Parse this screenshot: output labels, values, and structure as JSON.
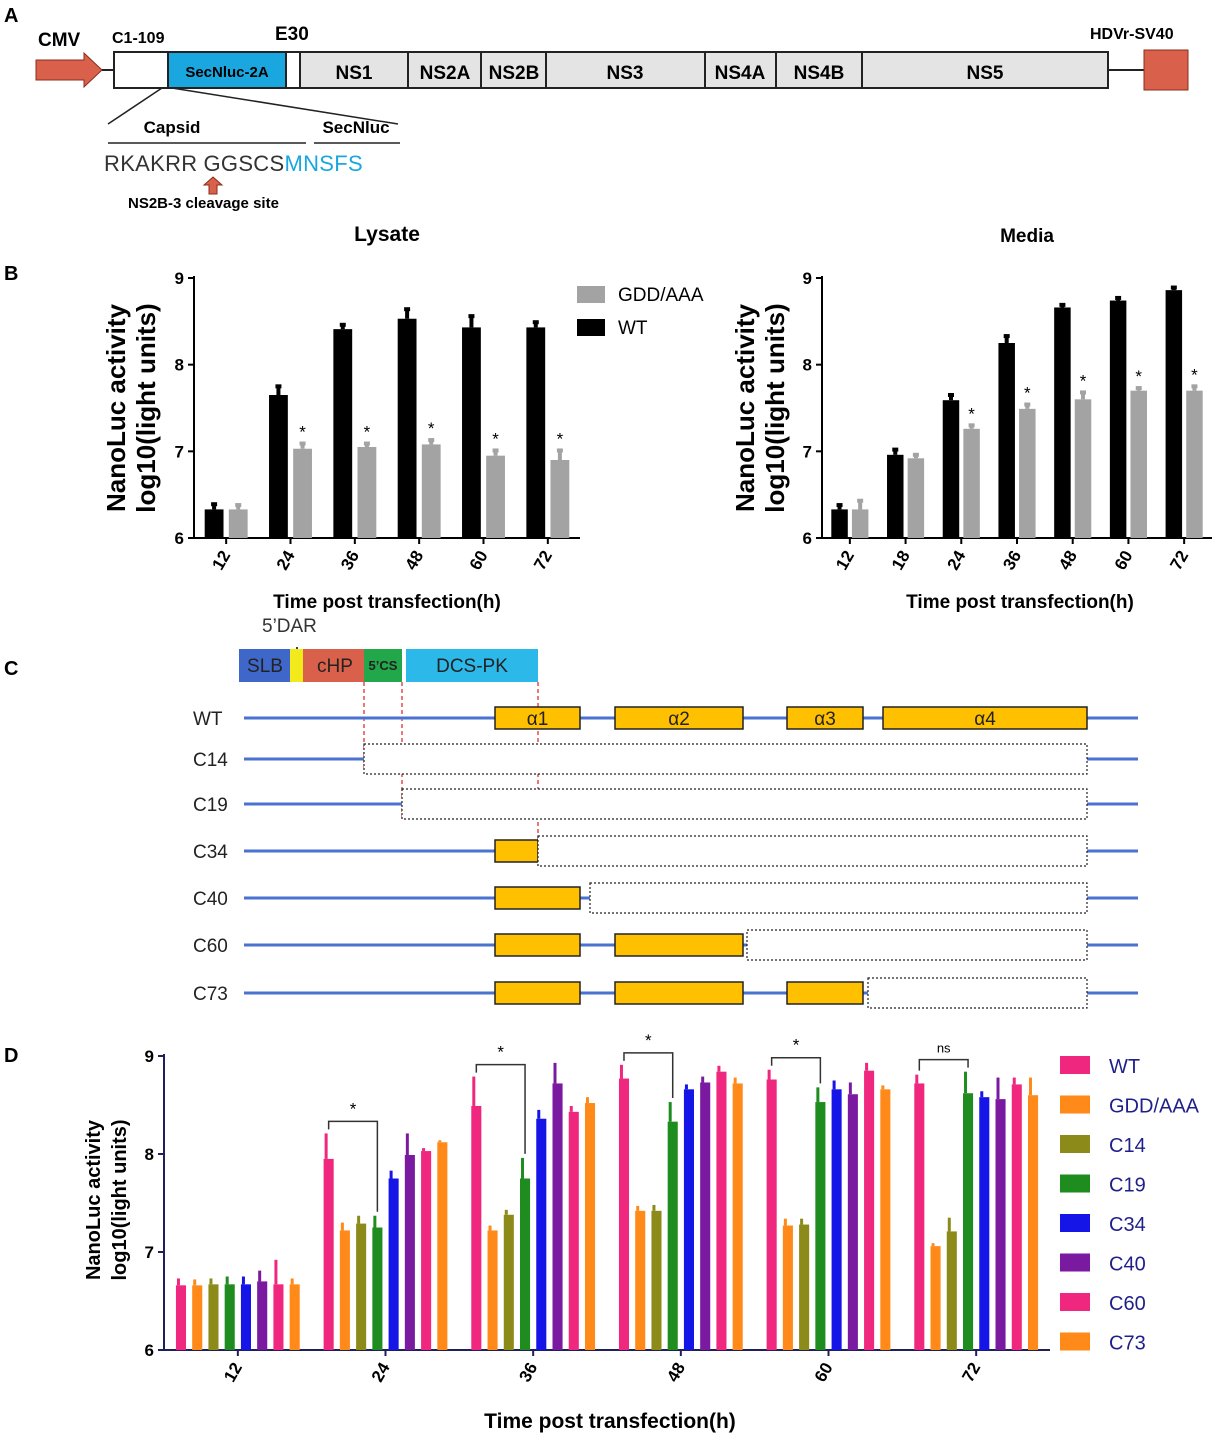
{
  "panel_a": {
    "label": "A",
    "promoter": "CMV",
    "c_label": "C1-109",
    "e_label": "E30",
    "tail_label": "HDVr-SV40",
    "genes": [
      "SecNluc-2A",
      "NS1",
      "NS2A",
      "NS2B",
      "NS3",
      "NS4A",
      "NS4B",
      "NS5"
    ],
    "capsid_label": "Capsid",
    "secnluc_label": "SecNluc",
    "seq_capsid": "RKAKRR",
    "seq_linker": "GGSCS",
    "seq_secnluc": "MNSFS",
    "cleavage_label": "NS2B-3 cleavage site",
    "colors": {
      "promoter": "#d9604a",
      "secnluc": "#1aa7e0",
      "gene": "#e4e4e4"
    }
  },
  "panel_b": {
    "label": "B"
  },
  "panel_c": {
    "label": "C",
    "top_label": "5’DAR",
    "elements": [
      "SLB",
      "cHP",
      "5’CS",
      "DCS-PK"
    ],
    "element_colors": [
      "#3f67c9",
      "#f2ea1a",
      "#d9604a",
      "#22a84a",
      "#2cb8e8"
    ],
    "rows": [
      "WT",
      "C14",
      "C19",
      "C34",
      "C40",
      "C60",
      "C73"
    ],
    "helices": [
      "α1",
      "α2",
      "α3",
      "α4"
    ],
    "colors": {
      "line": "#4a72d0",
      "helix": "#ffc000",
      "guide": "#e02020"
    }
  },
  "panel_d": {
    "label": "D"
  },
  "chart_data": [
    {
      "type": "bar",
      "panel": "B",
      "title": "Lysate",
      "categories": [
        "12",
        "24",
        "36",
        "48",
        "60",
        "72"
      ],
      "series": [
        {
          "name": "WT",
          "color": "#000000",
          "values": [
            6.33,
            7.65,
            8.41,
            8.53,
            8.43,
            8.43
          ],
          "errors": [
            0.06,
            0.1,
            0.05,
            0.11,
            0.13,
            0.06
          ]
        },
        {
          "name": "GDD/AAA",
          "color": "#a3a3a3",
          "values": [
            6.33,
            7.03,
            7.05,
            7.08,
            6.95,
            6.9
          ],
          "errors": [
            0.05,
            0.06,
            0.04,
            0.05,
            0.06,
            0.11
          ]
        }
      ],
      "significance": [
        "",
        "*",
        "*",
        "*",
        "*",
        "*"
      ],
      "legend": [
        "GDD/AAA",
        "WT"
      ],
      "xlabel": "Time post transfection(h)",
      "ylabel": [
        "NanoLuc activity",
        "log10(light units)"
      ],
      "yticks": [
        "6",
        "7",
        "8",
        "9"
      ],
      "ylim": [
        6,
        9
      ]
    },
    {
      "type": "bar",
      "panel": "B",
      "title": "Media",
      "categories": [
        "12",
        "18",
        "24",
        "36",
        "48",
        "60",
        "72"
      ],
      "series": [
        {
          "name": "WT",
          "color": "#000000",
          "values": [
            6.33,
            6.96,
            7.59,
            8.25,
            8.66,
            8.74,
            8.86
          ],
          "errors": [
            0.05,
            0.06,
            0.06,
            0.08,
            0.03,
            0.03,
            0.03
          ]
        },
        {
          "name": "GDD/AAA",
          "color": "#a3a3a3",
          "values": [
            6.33,
            6.92,
            7.26,
            7.49,
            7.6,
            7.7,
            7.7
          ],
          "errors": [
            0.1,
            0.04,
            0.04,
            0.05,
            0.08,
            0.03,
            0.05
          ]
        }
      ],
      "significance": [
        "",
        "",
        "*",
        "*",
        "*",
        "*",
        "*"
      ],
      "xlabel": "Time post transfection(h)",
      "ylabel": [
        "NanoLuc activity",
        "log10(light units)"
      ],
      "yticks": [
        "6",
        "7",
        "8",
        "9"
      ],
      "ylim": [
        6,
        9
      ]
    },
    {
      "type": "bar",
      "panel": "D",
      "title": "",
      "categories": [
        "12",
        "24",
        "36",
        "48",
        "60",
        "72"
      ],
      "series": [
        {
          "name": "WT",
          "color": "#f0277f",
          "values": [
            6.66,
            7.95,
            8.49,
            8.77,
            8.76,
            8.72
          ],
          "errors": [
            0.07,
            0.26,
            0.3,
            0.14,
            0.1,
            0.09
          ]
        },
        {
          "name": "GDD/AAA",
          "color": "#ff8a1a",
          "values": [
            6.66,
            7.22,
            7.22,
            7.42,
            7.27,
            7.06
          ],
          "errors": [
            0.06,
            0.08,
            0.05,
            0.05,
            0.07,
            0.03
          ]
        },
        {
          "name": "C14",
          "color": "#8c8b1a",
          "values": [
            6.67,
            7.29,
            7.38,
            7.42,
            7.28,
            7.21
          ],
          "errors": [
            0.06,
            0.08,
            0.05,
            0.06,
            0.06,
            0.14
          ]
        },
        {
          "name": "C19",
          "color": "#1f8c1f",
          "values": [
            6.67,
            7.25,
            7.75,
            8.33,
            8.53,
            8.62
          ],
          "errors": [
            0.08,
            0.12,
            0.21,
            0.2,
            0.15,
            0.22
          ]
        },
        {
          "name": "C34",
          "color": "#1515e8",
          "values": [
            6.67,
            7.75,
            8.36,
            8.66,
            8.66,
            8.58
          ],
          "errors": [
            0.08,
            0.08,
            0.09,
            0.05,
            0.09,
            0.06
          ]
        },
        {
          "name": "C40",
          "color": "#7a1aa0",
          "values": [
            6.7,
            7.99,
            8.72,
            8.73,
            8.61,
            8.56
          ],
          "errors": [
            0.11,
            0.22,
            0.21,
            0.06,
            0.12,
            0.22
          ]
        },
        {
          "name": "C60",
          "color": "#f0277f",
          "values": [
            6.67,
            8.03,
            8.43,
            8.84,
            8.85,
            8.71
          ],
          "errors": [
            0.25,
            0.03,
            0.06,
            0.06,
            0.08,
            0.07
          ]
        },
        {
          "name": "C73",
          "color": "#ff8a1a",
          "values": [
            6.67,
            8.12,
            8.52,
            8.72,
            8.66,
            8.6
          ],
          "errors": [
            0.06,
            0.02,
            0.06,
            0.06,
            0.04,
            0.18
          ]
        }
      ],
      "comparisons": [
        "",
        "*",
        "*",
        "*",
        "*",
        "ns"
      ],
      "legend": [
        "WT",
        "GDD/AAA",
        "C14",
        "C19",
        "C34",
        "C40",
        "C60",
        "C73"
      ],
      "xlabel": "Time post transfection(h)",
      "ylabel": [
        "NanoLuc activity",
        "log10(light units)"
      ],
      "yticks": [
        "6",
        "7",
        "8",
        "9"
      ],
      "ylim": [
        6,
        9
      ]
    }
  ]
}
